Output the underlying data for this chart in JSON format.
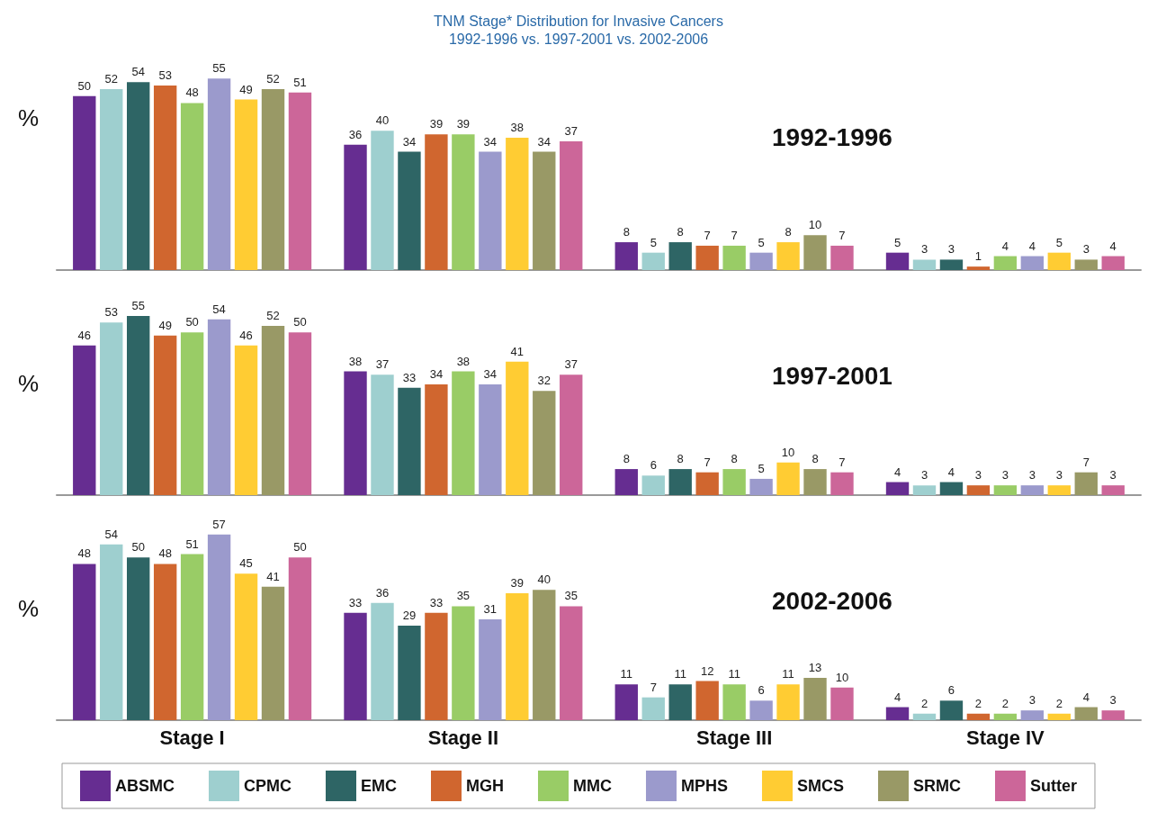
{
  "chart_data": [
    {
      "type": "bar",
      "title": "TNM Stage* Distribution for Invasive Cancers",
      "subtitle": "1992-1996 vs. 1997-2001 vs. 2002-2006",
      "ylabel": "%",
      "annotations": [
        "1992-1996"
      ],
      "categories": [
        null,
        null,
        null,
        null
      ],
      "data_labels": true,
      "tick_labels": false,
      "grid": false,
      "legend": false,
      "series": [
        {
          "color": "#662d91",
          "values": [
            50,
            36,
            8,
            5
          ]
        },
        {
          "color": "#9ecfcf",
          "values": [
            52,
            40,
            5,
            3
          ]
        },
        {
          "color": "#2e6565",
          "values": [
            54,
            34,
            8,
            3
          ]
        },
        {
          "color": "#d0662f",
          "values": [
            53,
            39,
            7,
            1
          ]
        },
        {
          "color": "#99cc66",
          "values": [
            48,
            39,
            7,
            4
          ]
        },
        {
          "color": "#9b9acc",
          "values": [
            55,
            34,
            5,
            4
          ]
        },
        {
          "color": "#ffcc33",
          "values": [
            49,
            38,
            8,
            5
          ]
        },
        {
          "color": "#999966",
          "values": [
            52,
            34,
            10,
            3
          ]
        },
        {
          "color": "#cc6699",
          "values": [
            51,
            37,
            7,
            4
          ]
        }
      ]
    },
    {
      "type": "bar",
      "ylabel": "%",
      "annotations": [
        "1997-2001"
      ],
      "categories": [
        null,
        null,
        null,
        null
      ],
      "data_labels": true,
      "tick_labels": false,
      "grid": false,
      "legend": false,
      "series": [
        {
          "color": "#662d91",
          "values": [
            46,
            38,
            8,
            4
          ]
        },
        {
          "color": "#9ecfcf",
          "values": [
            53,
            37,
            6,
            3
          ]
        },
        {
          "color": "#2e6565",
          "values": [
            55,
            33,
            8,
            4
          ]
        },
        {
          "color": "#d0662f",
          "values": [
            49,
            34,
            7,
            3
          ]
        },
        {
          "color": "#99cc66",
          "values": [
            50,
            38,
            8,
            3
          ]
        },
        {
          "color": "#9b9acc",
          "values": [
            54,
            34,
            5,
            3
          ]
        },
        {
          "color": "#ffcc33",
          "values": [
            46,
            41,
            10,
            3
          ]
        },
        {
          "color": "#999966",
          "values": [
            52,
            32,
            8,
            7
          ]
        },
        {
          "color": "#cc6699",
          "values": [
            50,
            37,
            7,
            3
          ]
        }
      ]
    },
    {
      "type": "bar",
      "ylabel": "%",
      "annotations": [
        "2002-2006"
      ],
      "categories": [
        "Stage I",
        "Stage II",
        "Stage III",
        "Stage IV"
      ],
      "data_labels": true,
      "tick_labels": "x",
      "grid": false,
      "legend": "bottom",
      "series": [
        {
          "name": "ABSMC",
          "color": "#662d91",
          "values": [
            48,
            33,
            11,
            4
          ]
        },
        {
          "name": "CPMC",
          "color": "#9ecfcf",
          "values": [
            54,
            36,
            7,
            2
          ]
        },
        {
          "name": "EMC",
          "color": "#2e6565",
          "values": [
            50,
            29,
            11,
            6
          ]
        },
        {
          "name": "MGH",
          "color": "#d0662f",
          "values": [
            48,
            33,
            12,
            2
          ]
        },
        {
          "name": "MMC",
          "color": "#99cc66",
          "values": [
            51,
            35,
            11,
            2
          ]
        },
        {
          "name": "MPHS",
          "color": "#9b9acc",
          "values": [
            57,
            31,
            6,
            3
          ]
        },
        {
          "name": "SMCS",
          "color": "#ffcc33",
          "values": [
            45,
            39,
            11,
            2
          ]
        },
        {
          "name": "SRMC",
          "color": "#999966",
          "values": [
            41,
            40,
            13,
            4
          ]
        },
        {
          "name": "Sutter",
          "color": "#cc6699",
          "values": [
            50,
            35,
            10,
            3
          ]
        }
      ]
    }
  ]
}
